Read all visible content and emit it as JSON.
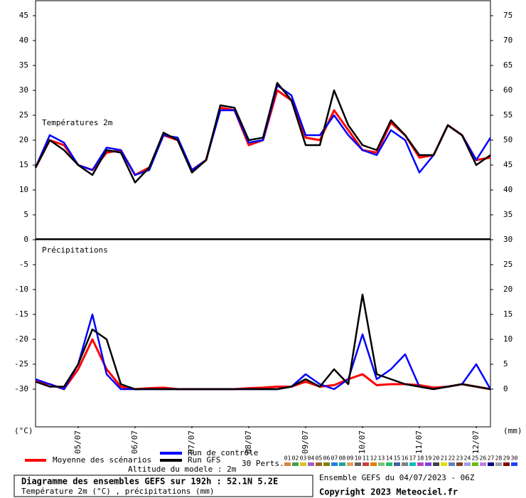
{
  "chart_data": [
    {
      "type": "line",
      "title": "Températures 2m",
      "x": [
        0,
        6,
        12,
        18,
        24,
        30,
        36,
        42,
        48,
        54,
        60,
        66,
        72,
        78,
        84,
        90,
        96,
        102,
        108,
        114,
        120,
        126,
        132,
        138,
        144,
        150,
        156,
        162,
        168,
        174,
        180,
        186,
        192
      ],
      "xlim": [
        0,
        192
      ],
      "ylim": [
        0,
        48
      ],
      "yticks": [
        0,
        5,
        10,
        15,
        20,
        25,
        30,
        35,
        40,
        45
      ],
      "y2lim": [
        30,
        78
      ],
      "y2ticks": [
        35,
        40,
        45,
        50,
        55,
        60,
        65,
        70,
        75
      ],
      "series": [
        {
          "name": "Moyenne des scénarios",
          "color": "#ff0000",
          "values": [
            14.5,
            20,
            19,
            15,
            14,
            17.5,
            18,
            13,
            14.5,
            21,
            20,
            14,
            16,
            26.5,
            26,
            19,
            20,
            30,
            28,
            20.5,
            20,
            26,
            22,
            18,
            17.5,
            23.5,
            21,
            16.5,
            17,
            23,
            21,
            16,
            16.5
          ]
        },
        {
          "name": "Run de contrôle",
          "color": "#0000ff",
          "values": [
            14.5,
            21,
            19.5,
            15,
            14,
            18.5,
            18,
            13,
            14,
            21,
            20.5,
            14,
            16,
            26,
            26,
            19.5,
            20,
            31,
            29,
            21,
            21,
            25,
            21,
            18,
            17,
            22,
            20,
            13.5,
            17,
            23,
            21,
            16,
            20.5
          ]
        },
        {
          "name": "Run GFS",
          "color": "#000000",
          "values": [
            14.5,
            20,
            18,
            15,
            13,
            18,
            17.5,
            11.5,
            14.5,
            21.5,
            20,
            13.5,
            16,
            27,
            26.5,
            20,
            20.5,
            31.5,
            28,
            19,
            19,
            30,
            23,
            19,
            18,
            24,
            21,
            17,
            17,
            23,
            21,
            15,
            17
          ]
        }
      ]
    },
    {
      "type": "line",
      "title": "Précipitations",
      "x": [
        0,
        6,
        12,
        18,
        24,
        30,
        36,
        42,
        48,
        54,
        60,
        66,
        72,
        78,
        84,
        90,
        96,
        102,
        108,
        114,
        120,
        126,
        132,
        138,
        144,
        150,
        156,
        162,
        168,
        174,
        180,
        186,
        192
      ],
      "xlim": [
        0,
        192
      ],
      "ylim": [
        -38,
        0
      ],
      "yticks": [
        -5,
        -10,
        -15,
        -20,
        -25,
        -30
      ],
      "y2lim": [
        -8,
        30
      ],
      "y2ticks": [
        0,
        5,
        10,
        15,
        20,
        25,
        30
      ],
      "xticks": [
        {
          "value": 18,
          "label": "05/07"
        },
        {
          "value": 42,
          "label": "06/07"
        },
        {
          "value": 66,
          "label": "07/07"
        },
        {
          "value": 90,
          "label": "08/07"
        },
        {
          "value": 114,
          "label": "09/07"
        },
        {
          "value": 138,
          "label": "10/07"
        },
        {
          "value": 162,
          "label": "11/07"
        },
        {
          "value": 186,
          "label": "12/07"
        }
      ],
      "ylabel": "(°C)",
      "y2label": "(mm)",
      "series": [
        {
          "color": "#ff0000",
          "axis": "y2",
          "values": [
            1.5,
            1,
            0,
            4,
            10,
            4,
            0.5,
            0,
            0.2,
            0.3,
            0,
            0,
            0,
            0,
            0,
            0.2,
            0.3,
            0.5,
            0.5,
            1.5,
            0.5,
            0.8,
            2,
            3,
            0.8,
            1,
            1,
            0.8,
            0.3,
            0.5,
            1,
            0.5,
            0
          ]
        },
        {
          "color": "#0000ff",
          "axis": "y2",
          "values": [
            2,
            1,
            0,
            5,
            15,
            3,
            0,
            0,
            0,
            0,
            0,
            0,
            0,
            0,
            0,
            0,
            0,
            0,
            0.5,
            3,
            1,
            0,
            2,
            11,
            2,
            4,
            7,
            0.5,
            0,
            0.5,
            1,
            5,
            0
          ]
        },
        {
          "color": "#000000",
          "axis": "y2",
          "values": [
            1.5,
            0.5,
            0.5,
            5,
            12,
            10,
            1,
            0,
            0,
            0,
            0,
            0,
            0,
            0,
            0,
            0,
            0,
            0,
            0.5,
            2,
            0.5,
            4,
            1,
            19,
            3,
            2,
            1,
            0.5,
            0,
            0.5,
            1,
            0.5,
            0
          ]
        }
      ]
    }
  ],
  "legend": {
    "perts_title": "30 Perts.",
    "altitude": "Altitude du modele : 2m",
    "perts": [
      {
        "label": "01",
        "color": "#e08040"
      },
      {
        "label": "02",
        "color": "#40a040"
      },
      {
        "label": "03",
        "color": "#e0c020"
      },
      {
        "label": "04",
        "color": "#a060c0"
      },
      {
        "label": "05",
        "color": "#a06020"
      },
      {
        "label": "06",
        "color": "#808000"
      },
      {
        "label": "07",
        "color": "#2080e0"
      },
      {
        "label": "08",
        "color": "#20a0a0"
      },
      {
        "label": "09",
        "color": "#e0a060"
      },
      {
        "label": "10",
        "color": "#606060"
      },
      {
        "label": "11",
        "color": "#c04040"
      },
      {
        "label": "12",
        "color": "#e08000"
      },
      {
        "label": "13",
        "color": "#80c080"
      },
      {
        "label": "14",
        "color": "#20c060"
      },
      {
        "label": "15",
        "color": "#4060a0"
      },
      {
        "label": "16",
        "color": "#808080"
      },
      {
        "label": "17",
        "color": "#00c0c0"
      },
      {
        "label": "18",
        "color": "#c040c0"
      },
      {
        "label": "19",
        "color": "#8040e0"
      },
      {
        "label": "20",
        "color": "#404040"
      },
      {
        "label": "21",
        "color": "#e0e000"
      },
      {
        "label": "22",
        "color": "#6080c0"
      },
      {
        "label": "23",
        "color": "#804020"
      },
      {
        "label": "24",
        "color": "#a0a0e0"
      },
      {
        "label": "25",
        "color": "#60c000"
      },
      {
        "label": "26",
        "color": "#c080e0"
      },
      {
        "label": "27",
        "color": "#000080"
      },
      {
        "label": "28",
        "color": "#a0a0a0"
      },
      {
        "label": "29",
        "color": "#800000"
      },
      {
        "label": "30",
        "color": "#2040ff"
      }
    ]
  },
  "footer": {
    "title": "Diagramme des ensembles GEFS sur 192h : 52.1N 5.2E",
    "subtitle": "Température 2m (°C) , précipitations (mm)",
    "run": "Ensemble GEFS du 04/07/2023 - 06Z",
    "copyright": "Copyright 2023 Meteociel.fr"
  }
}
